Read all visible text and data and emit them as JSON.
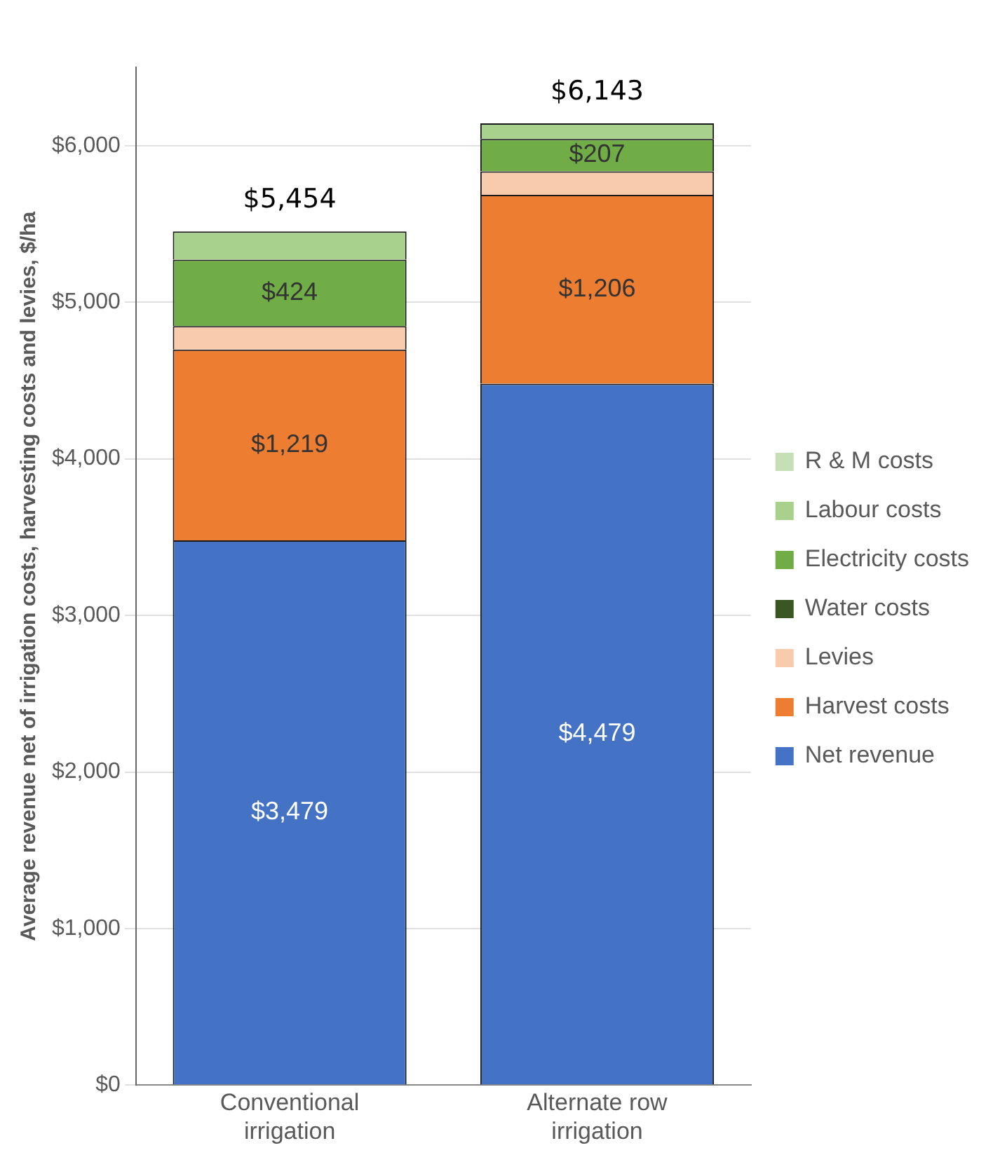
{
  "chart_data": {
    "type": "bar",
    "stacked": true,
    "ylabel": "Average revenue net of irrigation costs, harvesting costs and levies, $/ha",
    "categories": [
      "Conventional irrigation",
      "Alternate row irrigation"
    ],
    "series": [
      {
        "name": "Net revenue",
        "color": "#4472c4",
        "values": [
          3479,
          4479
        ],
        "value_labels": [
          "$3,479",
          "$4,479"
        ]
      },
      {
        "name": "Harvest costs",
        "color": "#ed7d31",
        "values": [
          1219,
          1206
        ],
        "value_labels": [
          "$1,219",
          "$1,206"
        ]
      },
      {
        "name": "Levies",
        "color": "#f8cbad",
        "values": [
          150,
          150
        ]
      },
      {
        "name": "Water costs",
        "color": "#385723",
        "values": [
          0,
          0
        ]
      },
      {
        "name": "Electricity costs",
        "color": "#70ad47",
        "values": [
          424,
          207
        ],
        "value_labels": [
          "$424",
          "$207"
        ]
      },
      {
        "name": "Labour costs",
        "color": "#a9d18e",
        "values": [
          180,
          100
        ]
      },
      {
        "name": "R & M costs",
        "color": "#c5e0b4",
        "values": [
          0,
          0
        ]
      }
    ],
    "totals": [
      "$5,454",
      "$6,143"
    ],
    "ylim": [
      0,
      6500
    ],
    "yticks": [
      {
        "value": 0,
        "label": "$0"
      },
      {
        "value": 1000,
        "label": "$1,000"
      },
      {
        "value": 2000,
        "label": "$2,000"
      },
      {
        "value": 3000,
        "label": "$3,000"
      },
      {
        "value": 4000,
        "label": "$4,000"
      },
      {
        "value": 5000,
        "label": "$5,000"
      },
      {
        "value": 6000,
        "label": "$6,000"
      }
    ],
    "grid": "y",
    "legend": "right"
  }
}
